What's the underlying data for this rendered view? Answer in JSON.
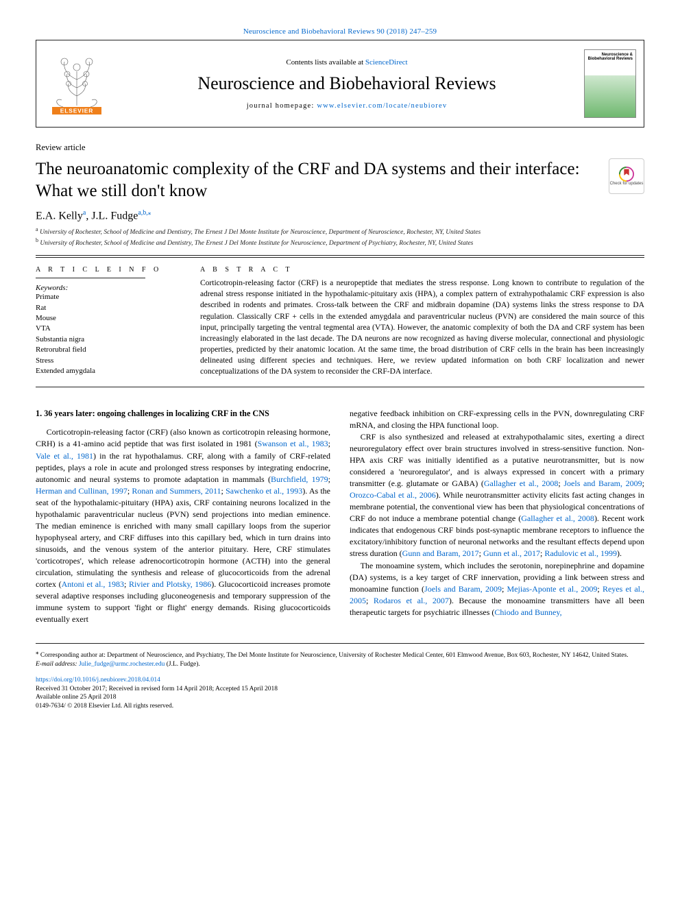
{
  "colors": {
    "link": "#0066cc",
    "text": "#000000",
    "rule": "#222222",
    "cover_grad_top": "#ffffff",
    "cover_grad_bot": "#6fb86f",
    "elsevier_orange": "#ef7f1a"
  },
  "header": {
    "top_citation_prefix": "",
    "top_citation_journal": "Neuroscience and Biobehavioral Reviews 90 (2018) 247–259",
    "contents_prefix": "Contents lists available at ",
    "contents_link": "ScienceDirect",
    "journal_name": "Neuroscience and Biobehavioral Reviews",
    "homepage_prefix": "journal homepage: ",
    "homepage_url": "www.elsevier.com/locate/neubiorev",
    "cover_title": "Neuroscience\n& Biobehavioral\nReviews"
  },
  "article": {
    "type": "Review article",
    "title": "The neuroanatomic complexity of the CRF and DA systems and their interface: What we still don't know",
    "crossmark_label": "Check for updates",
    "authors_html": "E.A. Kelly<sup>a</sup>, J.L. Fudge<sup>a,b,</sup><sup class=\"star\">⁎</sup>",
    "affiliations": [
      {
        "marker": "a",
        "text": "University of Rochester, School of Medicine and Dentistry, The Ernest J Del Monte Institute for Neuroscience, Department of Neuroscience, Rochester, NY, United States"
      },
      {
        "marker": "b",
        "text": "University of Rochester, School of Medicine and Dentistry, The Ernest J Del Monte Institute for Neuroscience, Department of Psychiatry, Rochester, NY, United States"
      }
    ]
  },
  "info": {
    "heading": "A R T I C L E   I N F O",
    "keywords_label": "Keywords:",
    "keywords": [
      "Primate",
      "Rat",
      "Mouse",
      "VTA",
      "Substantia nigra",
      "Retrorubral field",
      "Stress",
      "Extended amygdala"
    ]
  },
  "abstract": {
    "heading": "A B S T R A C T",
    "text": "Corticotropin-releasing factor (CRF) is a neuropeptide that mediates the stress response. Long known to contribute to regulation of the adrenal stress response initiated in the hypothalamic-pituitary axis (HPA), a complex pattern of extrahypothalamic CRF expression is also described in rodents and primates. Cross-talk between the CRF and midbrain dopamine (DA) systems links the stress response to DA regulation. Classically CRF + cells in the extended amygdala and paraventricular nucleus (PVN) are considered the main source of this input, principally targeting the ventral tegmental area (VTA). However, the anatomic complexity of both the DA and CRF system has been increasingly elaborated in the last decade. The DA neurons are now recognized as having diverse molecular, connectional and physiologic properties, predicted by their anatomic location. At the same time, the broad distribution of CRF cells in the brain has been increasingly delineated using different species and techniques. Here, we review updated information on both CRF localization and newer conceptualizations of the DA system to reconsider the CRF-DA interface."
  },
  "body": {
    "section_heading": "1. 36 years later: ongoing challenges in localizing CRF in the CNS",
    "col_left": "Corticotropin-releasing factor (CRF) (also known as corticotropin releasing hormone, CRH) is a 41-amino acid peptide that was first isolated in 1981 (<a>Swanson et al., 1983</a>; <a>Vale et al., 1981</a>) in the rat hypothalamus. CRF, along with a family of CRF-related peptides, plays a role in acute and prolonged stress responses by integrating endocrine, autonomic and neural systems to promote adaptation in mammals (<a>Burchfield, 1979</a>; <a>Herman and Cullinan, 1997</a>; <a>Ronan and Summers, 2011</a>; <a>Sawchenko et al., 1993</a>). As the seat of the hypothalamic-pituitary (HPA) axis, CRF containing neurons localized in the hypothalamic paraventricular nucleus (PVN) send projections into median eminence. The median eminence is enriched with many small capillary loops from the superior hypophyseal artery, and CRF diffuses into this capillary bed, which in turn drains into sinusoids, and the venous system of the anterior pituitary. Here, CRF stimulates 'corticotropes', which release adrenocorticotropin hormone (ACTH) into the general circulation, stimulating the synthesis and release of glucocorticoids from the adrenal cortex (<a>Antoni et al., 1983</a>; <a>Rivier and Plotsky, 1986</a>). Glucocorticoid increases promote several adaptive responses including gluconeogenesis and temporary suppression of the immune system to support 'fight or flight' energy demands. Rising glucocorticoids eventually exert ",
    "col_right_p1": "negative feedback inhibition on CRF-expressing cells in the PVN, downregulating CRF mRNA, and closing the HPA functional loop.",
    "col_right_p2": "CRF is also synthesized and released at extrahypothalamic sites, exerting a direct neuroregulatory effect over brain structures involved in stress-sensitive function. Non-HPA axis CRF was initially identified as a putative neurotransmitter, but is now considered a 'neuroregulator', and is always expressed in concert with a primary transmitter (e.g. glutamate or GABA) (<a>Gallagher et al., 2008</a>; <a>Joels and Baram, 2009</a>; <a>Orozco-Cabal et al., 2006</a>). While neurotransmitter activity elicits fast acting changes in membrane potential, the conventional view has been that physiological concentrations of CRF do not induce a membrane potential change (<a>Gallagher et al., 2008</a>). Recent work indicates that endogenous CRF binds post-synaptic membrane receptors to influence the excitatory/inhibitory function of neuronal networks and the resultant effects depend upon stress duration (<a>Gunn and Baram, 2017</a>; <a>Gunn et al., 2017</a>; <a>Radulovic et al., 1999</a>).",
    "col_right_p3": "The monoamine system, which includes the serotonin, norepinephrine and dopamine (DA) systems, is a key target of CRF innervation, providing a link between stress and monoamine function (<a>Joels and Baram, 2009</a>; <a>Mejias-Aponte et al., 2009</a>; <a>Reyes et al., 2005</a>; <a>Rodaros et al., 2007</a>). Because the monoamine transmitters have all been therapeutic targets for psychiatric illnesses (<a>Chiodo and Bunney,</a>"
  },
  "footer": {
    "corr_marker": "⁎",
    "corr_text": "Corresponding author at: Department of Neuroscience, and Psychiatry, The Del Monte Institute for Neuroscience, University of Rochester Medical Center, 601 Elmwood Avenue, Box 603, Rochester, NY 14642, United States.",
    "email_label": "E-mail address:",
    "email": "Julie_fudge@urmc.rochester.edu",
    "email_suffix": " (J.L. Fudge).",
    "doi": "https://doi.org/10.1016/j.neubiorev.2018.04.014",
    "history": "Received 31 October 2017; Received in revised form 14 April 2018; Accepted 15 April 2018",
    "available": "Available online 25 April 2018",
    "copyright": "0149-7634/ © 2018 Elsevier Ltd. All rights reserved."
  }
}
